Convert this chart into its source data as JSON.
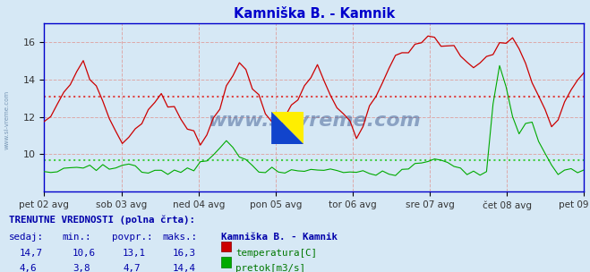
{
  "title": "Kamniška B. - Kamnik",
  "title_color": "#0000cc",
  "fig_bg_color": "#d6e8f5",
  "plot_bg_color": "#d6e8f5",
  "x_labels": [
    "pet 02 avg",
    "sob 03 avg",
    "ned 04 avg",
    "pon 05 avg",
    "tor 06 avg",
    "sre 07 avg",
    "čet 08 avg",
    "pet 09 avg"
  ],
  "n_points": 84,
  "temp_color": "#cc0000",
  "flow_color": "#00aa00",
  "temp_avg_line_color": "#dd4444",
  "flow_avg_line_color": "#44cc44",
  "grid_color": "#cc8888",
  "grid_color_minor": "#ddbbbb",
  "axis_color": "#0000cc",
  "temp_avg": 13.1,
  "flow_avg": 4.7,
  "y_min": 8.0,
  "y_max": 17.0,
  "bottom_text_color": "#0000aa",
  "green_text_color": "#007700",
  "watermark_color": "#1a3a8a",
  "side_watermark_color": "#6688aa"
}
